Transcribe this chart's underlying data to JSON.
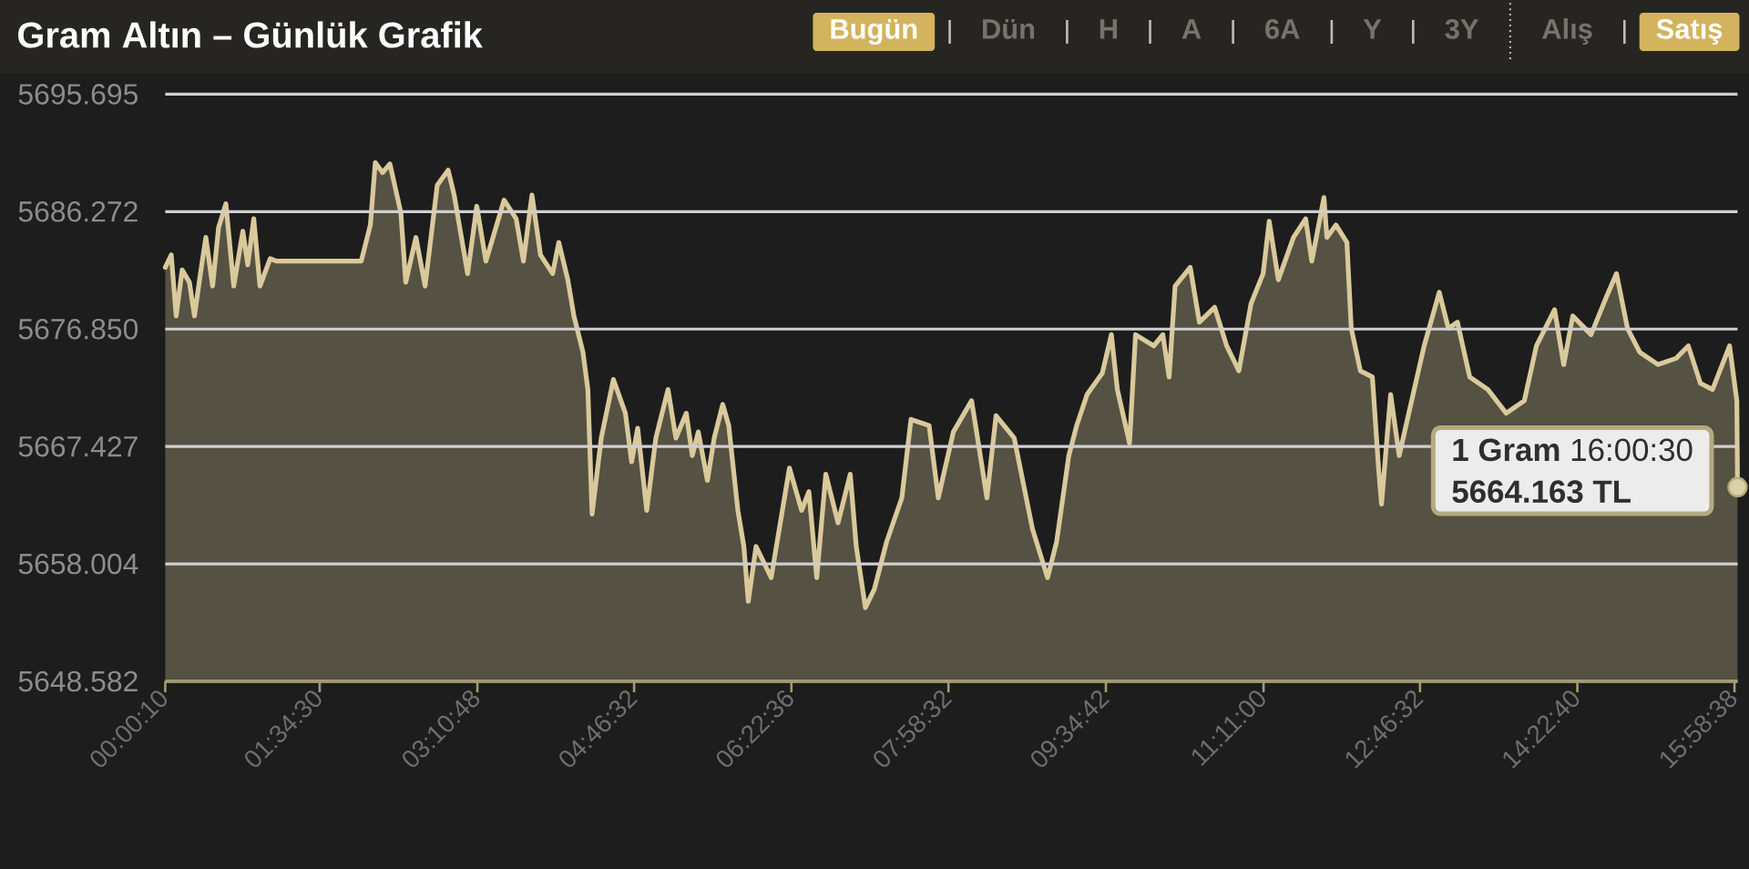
{
  "chart_data": {
    "type": "area",
    "title": "Gram Altın – Günlük Grafik",
    "annotations": [
      "Bugün",
      "Dün",
      "H",
      "A",
      "6A",
      "Y",
      "3Y",
      "Alış",
      "Satış",
      {
        "text": "**1 Gram** 16:00:30",
        "x": 16.0083,
        "y": 5664.163
      },
      "5664.163 TL"
    ],
    "x": [
      0.0028,
      0.064,
      0.114,
      0.175,
      0.249,
      0.3,
      0.361,
      0.416,
      0.485,
      0.546,
      0.62,
      0.7,
      0.793,
      0.843,
      0.904,
      0.967,
      1.071,
      1.134,
      1.998,
      2.091,
      2.141,
      2.215,
      2.29,
      2.401,
      2.451,
      2.555,
      2.648,
      2.772,
      2.883,
      2.944,
      3.081,
      3.174,
      3.267,
      3.452,
      3.575,
      3.649,
      3.736,
      3.823,
      3.946,
      4.009,
      4.101,
      4.163,
      4.255,
      4.305,
      4.348,
      4.441,
      4.565,
      4.687,
      4.75,
      4.812,
      4.904,
      4.997,
      5.121,
      5.201,
      5.307,
      5.368,
      5.429,
      5.522,
      5.591,
      5.678,
      5.739,
      5.832,
      5.893,
      5.938,
      6.017,
      6.171,
      6.357,
      6.481,
      6.555,
      6.635,
      6.727,
      6.852,
      6.976,
      7.037,
      7.13,
      7.222,
      7.347,
      7.501,
      7.594,
      7.779,
      7.872,
      8.026,
      8.211,
      8.28,
      8.367,
      8.46,
      8.645,
      8.831,
      8.985,
      9.077,
      9.201,
      9.281,
      9.387,
      9.541,
      9.634,
      9.695,
      9.819,
      9.88,
      10.066,
      10.158,
      10.222,
      10.283,
      10.437,
      10.53,
      10.685,
      10.808,
      10.932,
      11.056,
      11.179,
      11.241,
      11.334,
      11.488,
      11.612,
      11.674,
      11.798,
      11.828,
      11.92,
      12.032,
      12.076,
      12.169,
      12.291,
      12.354,
      12.384,
      12.477,
      12.564,
      12.662,
      12.818,
      12.972,
      13.065,
      13.157,
      13.282,
      13.467,
      13.653,
      13.838,
      13.961,
      14.146,
      14.239,
      14.331,
      14.517,
      14.672,
      14.776,
      14.888,
      15.012,
      15.197,
      15.383,
      15.507,
      15.63,
      15.754,
      15.927,
      16.001,
      16.0083
    ],
    "values": [
      5681.8,
      5682.8,
      5677.9,
      5681.6,
      5680.6,
      5677.9,
      5681.3,
      5684.2,
      5680.3,
      5685.0,
      5686.9,
      5680.3,
      5684.7,
      5682.0,
      5685.7,
      5680.3,
      5682.5,
      5682.3,
      5682.3,
      5685.2,
      5690.2,
      5689.4,
      5690.1,
      5686.2,
      5680.6,
      5684.2,
      5680.3,
      5688.4,
      5689.6,
      5687.6,
      5681.3,
      5686.7,
      5682.3,
      5687.2,
      5685.7,
      5682.3,
      5687.6,
      5682.8,
      5681.3,
      5683.8,
      5680.8,
      5677.9,
      5675.0,
      5672.0,
      5662.0,
      5668.1,
      5672.8,
      5670.1,
      5666.2,
      5668.9,
      5662.3,
      5668.1,
      5672.0,
      5668.1,
      5670.1,
      5666.7,
      5668.6,
      5664.7,
      5668.1,
      5670.8,
      5669.1,
      5662.3,
      5659.4,
      5655.0,
      5659.4,
      5656.9,
      5665.7,
      5662.3,
      5663.8,
      5656.9,
      5665.2,
      5661.3,
      5665.2,
      5659.4,
      5654.5,
      5656.0,
      5659.8,
      5663.3,
      5669.6,
      5669.1,
      5663.3,
      5668.6,
      5671.1,
      5667.7,
      5663.3,
      5669.9,
      5668.1,
      5660.8,
      5656.9,
      5659.8,
      5666.7,
      5669.1,
      5671.6,
      5673.3,
      5676.4,
      5672.0,
      5667.7,
      5676.4,
      5675.5,
      5676.4,
      5673.0,
      5680.3,
      5681.8,
      5677.4,
      5678.6,
      5675.5,
      5673.5,
      5678.9,
      5681.3,
      5685.5,
      5680.8,
      5684.2,
      5685.7,
      5682.3,
      5687.4,
      5684.2,
      5685.2,
      5683.8,
      5676.9,
      5673.5,
      5673.0,
      5665.7,
      5662.8,
      5671.6,
      5666.7,
      5670.1,
      5675.5,
      5679.8,
      5676.9,
      5677.4,
      5673.0,
      5672.0,
      5670.1,
      5671.1,
      5675.5,
      5678.4,
      5674.0,
      5677.9,
      5676.4,
      5679.4,
      5681.3,
      5676.9,
      5675.0,
      5674.0,
      5674.5,
      5675.5,
      5672.5,
      5672.0,
      5675.5,
      5671.1,
      5664.163
    ],
    "color": "#d9c99b",
    "xlim": [
      0.0028,
      16.0083
    ],
    "ylim": [
      5648.582,
      5695.695
    ],
    "xticks": [
      {
        "value": 0.0028,
        "label": "00:00:10"
      },
      {
        "value": 1.575,
        "label": "01:34:30"
      },
      {
        "value": 3.18,
        "label": "03:10:48"
      },
      {
        "value": 4.7756,
        "label": "04:46:32"
      },
      {
        "value": 6.3767,
        "label": "06:22:36"
      },
      {
        "value": 7.9756,
        "label": "07:58:32"
      },
      {
        "value": 9.5783,
        "label": "09:34:42"
      },
      {
        "value": 11.1833,
        "label": "11:11:00"
      },
      {
        "value": 12.7756,
        "label": "12:46:32"
      },
      {
        "value": 14.3778,
        "label": "14:22:40"
      },
      {
        "value": 15.9772,
        "label": "15:58:38"
      }
    ],
    "yticks": [
      5648.582,
      5658.004,
      5667.427,
      {
        "value": 5676.85,
        "label": "5676.850"
      },
      5686.272,
      5695.695
    ],
    "grid": "y"
  }
}
